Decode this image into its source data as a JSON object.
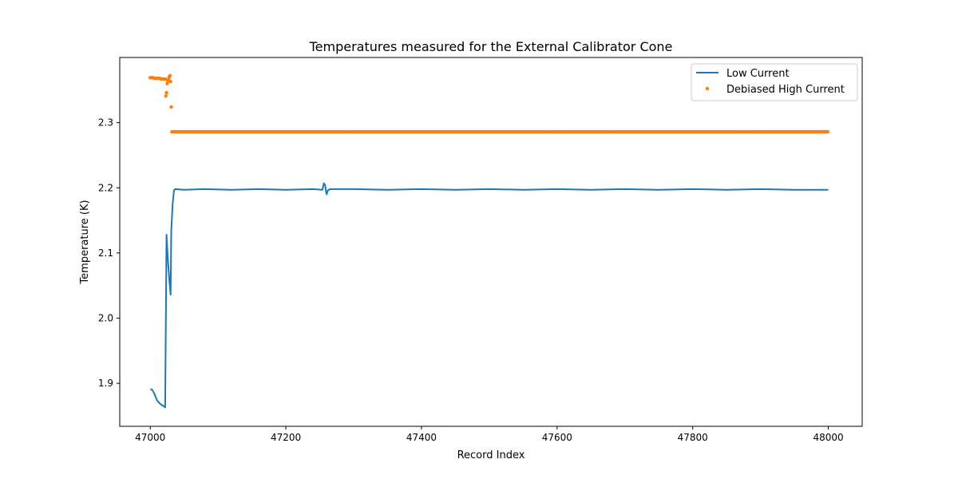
{
  "chart_data": {
    "type": "line",
    "title": "Temperatures measured for the External Calibrator Cone",
    "xlabel": "Record Index",
    "ylabel": "Temperature (K)",
    "xlim": [
      46955,
      48050
    ],
    "ylim": [
      1.834,
      2.4
    ],
    "x_ticks": [
      47000,
      47200,
      47400,
      47600,
      47800,
      48000
    ],
    "y_ticks": [
      1.9,
      2.0,
      2.1,
      2.2,
      2.3
    ],
    "x_tick_labels": [
      "47000",
      "47200",
      "47400",
      "47600",
      "47800",
      "48000"
    ],
    "y_tick_labels": [
      "1.9",
      "2.0",
      "2.1",
      "2.2",
      "2.3"
    ],
    "grid": false,
    "legend_position": "top-right",
    "series": [
      {
        "name": "Low Current",
        "kind": "line",
        "color": "#1f77b4",
        "points": [
          [
            47000,
            1.891
          ],
          [
            47003,
            1.89
          ],
          [
            47006,
            1.884
          ],
          [
            47010,
            1.874
          ],
          [
            47014,
            1.869
          ],
          [
            47018,
            1.866
          ],
          [
            47021,
            1.864
          ],
          [
            47022,
            1.863
          ],
          [
            47024,
            2.128
          ],
          [
            47026,
            2.09
          ],
          [
            47028,
            2.06
          ],
          [
            47030,
            2.036
          ],
          [
            47031,
            2.135
          ],
          [
            47033,
            2.175
          ],
          [
            47035,
            2.196
          ],
          [
            47037,
            2.198
          ],
          [
            47050,
            2.197
          ],
          [
            47080,
            2.198
          ],
          [
            47120,
            2.197
          ],
          [
            47160,
            2.198
          ],
          [
            47200,
            2.197
          ],
          [
            47240,
            2.198
          ],
          [
            47254,
            2.197
          ],
          [
            47256,
            2.207
          ],
          [
            47258,
            2.204
          ],
          [
            47259,
            2.196
          ],
          [
            47260,
            2.19
          ],
          [
            47262,
            2.196
          ],
          [
            47265,
            2.198
          ],
          [
            47300,
            2.198
          ],
          [
            47350,
            2.197
          ],
          [
            47400,
            2.198
          ],
          [
            47450,
            2.197
          ],
          [
            47500,
            2.198
          ],
          [
            47550,
            2.197
          ],
          [
            47600,
            2.198
          ],
          [
            47650,
            2.197
          ],
          [
            47700,
            2.198
          ],
          [
            47750,
            2.197
          ],
          [
            47800,
            2.198
          ],
          [
            47850,
            2.197
          ],
          [
            47900,
            2.198
          ],
          [
            47950,
            2.197
          ],
          [
            48000,
            2.197
          ]
        ]
      },
      {
        "name": "Debiased High Current",
        "kind": "scatter",
        "color": "#ff7f0e",
        "points": [
          [
            47000,
            2.369
          ],
          [
            47002,
            2.369
          ],
          [
            47004,
            2.369
          ],
          [
            47006,
            2.368
          ],
          [
            47008,
            2.368
          ],
          [
            47010,
            2.368
          ],
          [
            47012,
            2.368
          ],
          [
            47014,
            2.368
          ],
          [
            47016,
            2.367
          ],
          [
            47018,
            2.367
          ],
          [
            47020,
            2.367
          ],
          [
            47022,
            2.367
          ],
          [
            47023,
            2.341
          ],
          [
            47024,
            2.346
          ],
          [
            47025,
            2.36
          ],
          [
            47026,
            2.364
          ],
          [
            47027,
            2.367
          ],
          [
            47028,
            2.37
          ],
          [
            47029,
            2.372
          ],
          [
            47030,
            2.363
          ],
          [
            47031,
            2.324
          ],
          [
            47032,
            2.286
          ]
        ],
        "flat_segment": {
          "x_start": 47033,
          "x_end": 48000,
          "y": 2.286
        }
      }
    ]
  }
}
